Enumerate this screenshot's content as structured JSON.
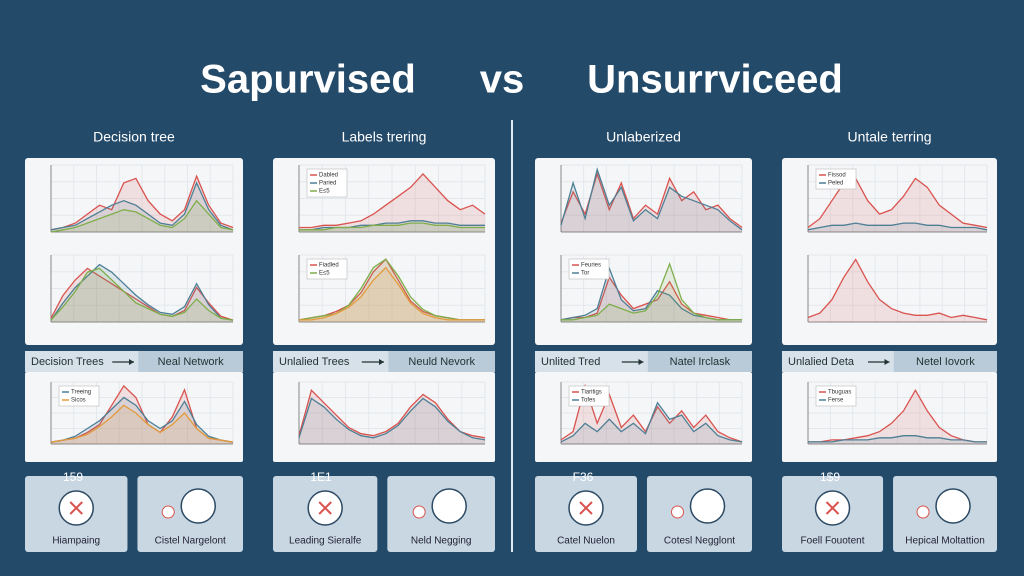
{
  "title": {
    "left": "Sapurvised",
    "mid": "vs",
    "right": "Unsurrviceed"
  },
  "columns": [
    {
      "heading": "Decision tree",
      "charts": [
        {
          "ylim": [
            0,
            30
          ],
          "series": [
            {
              "color": "#d9534f",
              "values": [
                1,
                2,
                4,
                8,
                12,
                10,
                22,
                24,
                14,
                8,
                5,
                10,
                25,
                12,
                4,
                2
              ]
            },
            {
              "color": "#4d7f95",
              "values": [
                1,
                2,
                3,
                6,
                9,
                12,
                14,
                12,
                8,
                4,
                3,
                8,
                22,
                10,
                3,
                1
              ]
            },
            {
              "color": "#7fae4a",
              "values": [
                0,
                1,
                2,
                4,
                6,
                8,
                10,
                9,
                6,
                3,
                2,
                6,
                14,
                8,
                2,
                1
              ]
            }
          ]
        },
        {
          "ylim": [
            0,
            35
          ],
          "series": [
            {
              "color": "#d9534f",
              "values": [
                2,
                14,
                22,
                28,
                24,
                20,
                16,
                12,
                8,
                4,
                3,
                6,
                18,
                10,
                3,
                1
              ]
            },
            {
              "color": "#4d7f95",
              "values": [
                1,
                10,
                18,
                24,
                30,
                26,
                20,
                14,
                9,
                5,
                4,
                8,
                20,
                9,
                2,
                1
              ]
            },
            {
              "color": "#7fae4a",
              "values": [
                1,
                8,
                16,
                26,
                28,
                22,
                16,
                10,
                7,
                4,
                3,
                5,
                12,
                6,
                2,
                1
              ]
            }
          ]
        },
        {
          "ylim": [
            0,
            32
          ],
          "series": [
            {
              "color": "#d9534f",
              "values": [
                1,
                2,
                3,
                6,
                10,
                20,
                30,
                24,
                10,
                6,
                14,
                28,
                8,
                3,
                2,
                1
              ]
            },
            {
              "name": "Treeing",
              "color": "#4d7f95",
              "values": [
                1,
                2,
                4,
                8,
                12,
                18,
                24,
                20,
                12,
                8,
                12,
                22,
                10,
                4,
                2,
                1
              ]
            },
            {
              "name": "Sicos",
              "color": "#e39a3a",
              "values": [
                1,
                2,
                3,
                5,
                9,
                14,
                20,
                16,
                10,
                6,
                10,
                16,
                8,
                3,
                2,
                1
              ]
            }
          ]
        }
      ],
      "flow": {
        "from": "Decision Trees",
        "to": "Neal Network"
      },
      "bottom": {
        "badge": "159",
        "left": "Hiampaing",
        "right": "Cistel  Nargelont"
      }
    },
    {
      "heading": "Labels trering",
      "charts": [
        {
          "ylim": [
            0,
            30
          ],
          "series": [
            {
              "name": "Dabled",
              "color": "#d9534f",
              "values": [
                2,
                2,
                3,
                3,
                4,
                5,
                8,
                12,
                16,
                20,
                26,
                20,
                14,
                10,
                12,
                8
              ]
            },
            {
              "name": "Paried",
              "color": "#4d7f95",
              "values": [
                1,
                1,
                2,
                2,
                2,
                3,
                3,
                4,
                4,
                5,
                5,
                4,
                4,
                3,
                3,
                3
              ]
            },
            {
              "name": "E≤5",
              "color": "#7fae4a",
              "values": [
                1,
                1,
                1,
                2,
                2,
                2,
                3,
                3,
                3,
                4,
                4,
                3,
                3,
                2,
                2,
                2
              ]
            }
          ]
        },
        {
          "ylim": [
            0,
            32
          ],
          "series": [
            {
              "name": "Fiadled",
              "color": "#d9534f",
              "values": [
                1,
                2,
                3,
                5,
                8,
                14,
                24,
                30,
                20,
                10,
                5,
                3,
                2,
                1,
                1,
                1
              ]
            },
            {
              "name": "E≤5",
              "color": "#7fae4a",
              "values": [
                1,
                2,
                3,
                4,
                8,
                16,
                26,
                30,
                22,
                12,
                6,
                3,
                2,
                1,
                1,
                1
              ]
            },
            {
              "color": "#e39a3a",
              "values": [
                1,
                1,
                2,
                4,
                7,
                12,
                20,
                26,
                18,
                9,
                4,
                2,
                1,
                1,
                1,
                1
              ]
            }
          ]
        },
        {
          "ylim": [
            0,
            30
          ],
          "series": [
            {
              "color": "#d9534f",
              "values": [
                4,
                26,
                20,
                14,
                8,
                5,
                4,
                6,
                10,
                18,
                24,
                20,
                12,
                6,
                4,
                3
              ]
            },
            {
              "color": "#4d7f95",
              "values": [
                3,
                22,
                18,
                12,
                7,
                4,
                3,
                5,
                9,
                16,
                22,
                18,
                11,
                6,
                3,
                2
              ]
            }
          ]
        }
      ],
      "flow": {
        "from": "Unlalied Trees",
        "to": "Neuld Nevork"
      },
      "bottom": {
        "badge": "1E1",
        "left": "Leading   Sieralfe",
        "right": "Neld   Negging"
      }
    },
    {
      "heading": "Unlaberized",
      "charts": [
        {
          "ylim": [
            0,
            30
          ],
          "series": [
            {
              "color": "#d9534f",
              "values": [
                4,
                18,
                8,
                26,
                10,
                22,
                6,
                12,
                8,
                24,
                14,
                18,
                10,
                12,
                6,
                2
              ]
            },
            {
              "color": "#4d7f95",
              "values": [
                3,
                22,
                6,
                28,
                12,
                20,
                5,
                10,
                6,
                20,
                16,
                14,
                12,
                10,
                5,
                1
              ]
            }
          ]
        },
        {
          "ylim": [
            0,
            30
          ],
          "series": [
            {
              "name": "Feuries",
              "color": "#d9534f",
              "values": [
                1,
                2,
                2,
                4,
                20,
                12,
                6,
                8,
                10,
                18,
                8,
                4,
                3,
                2,
                1,
                1
              ]
            },
            {
              "name": "Tor",
              "color": "#4d7f95",
              "values": [
                1,
                2,
                3,
                6,
                24,
                10,
                5,
                6,
                14,
                12,
                6,
                3,
                2,
                1,
                1,
                1
              ]
            },
            {
              "color": "#7fae4a",
              "values": [
                1,
                1,
                2,
                3,
                8,
                6,
                4,
                5,
                12,
                26,
                10,
                4,
                2,
                1,
                1,
                1
              ]
            }
          ]
        },
        {
          "ylim": [
            0,
            30
          ],
          "series": [
            {
              "name": "Tiaritigs",
              "color": "#d9534f",
              "values": [
                2,
                6,
                28,
                10,
                24,
                8,
                14,
                6,
                18,
                10,
                16,
                8,
                14,
                6,
                3,
                1
              ]
            },
            {
              "name": "Tofes",
              "color": "#4d7f95",
              "values": [
                1,
                4,
                10,
                6,
                12,
                6,
                10,
                5,
                20,
                12,
                14,
                6,
                10,
                4,
                2,
                1
              ]
            }
          ]
        }
      ],
      "flow": {
        "from": "Unlited Tred",
        "to": "Natel Irclask"
      },
      "bottom": {
        "badge": "F36",
        "left": "Catel  Nuelon",
        "right": "Cotesl  Negglont"
      }
    },
    {
      "heading": "Untale terring",
      "charts": [
        {
          "ylim": [
            0,
            30
          ],
          "series": [
            {
              "name": "Fissod",
              "color": "#d9534f",
              "values": [
                2,
                6,
                14,
                22,
                24,
                14,
                8,
                10,
                16,
                24,
                20,
                12,
                8,
                4,
                3,
                2
              ]
            },
            {
              "name": "Peled",
              "color": "#4d7f95",
              "values": [
                1,
                2,
                3,
                3,
                4,
                3,
                3,
                3,
                4,
                4,
                3,
                3,
                2,
                2,
                2,
                1
              ]
            }
          ]
        },
        {
          "ylim": [
            0,
            30
          ],
          "series": [
            {
              "color": "#d9534f",
              "values": [
                2,
                4,
                10,
                20,
                28,
                18,
                10,
                6,
                4,
                3,
                3,
                4,
                2,
                3,
                2,
                1
              ]
            }
          ]
        },
        {
          "ylim": [
            0,
            30
          ],
          "series": [
            {
              "name": "Tbuguas",
              "color": "#d9534f",
              "values": [
                1,
                1,
                2,
                2,
                3,
                4,
                6,
                10,
                16,
                26,
                16,
                8,
                4,
                2,
                1,
                1
              ]
            },
            {
              "name": "Ferse",
              "color": "#4d7f95",
              "values": [
                1,
                1,
                1,
                2,
                2,
                2,
                3,
                3,
                4,
                4,
                3,
                3,
                2,
                2,
                1,
                1
              ]
            }
          ]
        }
      ],
      "flow": {
        "from": "Unlalied Deta",
        "to": "Netel Iovork"
      },
      "bottom": {
        "badge": "1$9",
        "left": "Foell  Fouotent",
        "right": "Hepical  Moltattion"
      }
    }
  ]
}
